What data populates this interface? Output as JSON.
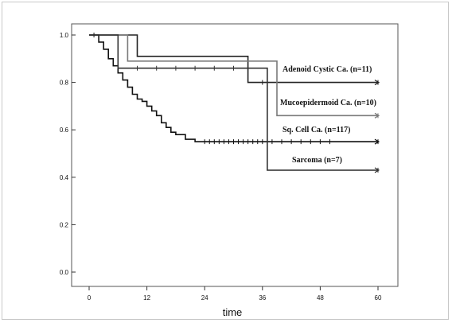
{
  "chart_data": {
    "type": "line",
    "title": "",
    "xlabel": "time",
    "ylabel": "",
    "xlim": [
      0,
      60
    ],
    "ylim": [
      0,
      1.0
    ],
    "x_ticks": [
      "0",
      "12",
      "24",
      "36",
      "48",
      "60"
    ],
    "x_tick_values": [
      0,
      12,
      24,
      36,
      48,
      60
    ],
    "y_ticks": [
      "0.0",
      "0.2",
      "0.4",
      "0.6",
      "0.8",
      "1.0"
    ],
    "y_tick_values": [
      0.0,
      0.2,
      0.4,
      0.6,
      0.8,
      1.0
    ],
    "grid": false,
    "legend": "annotations next to curves",
    "series": [
      {
        "name": "Adenoid Cystic Ca. (n=11)",
        "color": "#222222",
        "step": true,
        "x": [
          0,
          10,
          10,
          33,
          33,
          60
        ],
        "y": [
          1.0,
          1.0,
          0.91,
          0.91,
          0.8,
          0.8
        ],
        "censor_x": [
          36,
          60
        ]
      },
      {
        "name": "Mucoepidermoid Ca. (n=10)",
        "color": "#7a7a7a",
        "step": true,
        "x": [
          0,
          8,
          8,
          39,
          39,
          60
        ],
        "y": [
          1.0,
          1.0,
          0.89,
          0.89,
          0.66,
          0.66
        ],
        "censor_x": [
          60
        ]
      },
      {
        "name": "Sq. Cell Ca. (n=117)",
        "color": "#111111",
        "step": true,
        "x": [
          0,
          2,
          2,
          3,
          3,
          4,
          4,
          5,
          5,
          6,
          6,
          7,
          7,
          8,
          8,
          9,
          9,
          10,
          10,
          11,
          11,
          12,
          12,
          13,
          13,
          14,
          14,
          15,
          15,
          16,
          16,
          17,
          17,
          18,
          18,
          20,
          20,
          22,
          22,
          60
        ],
        "y": [
          1.0,
          1.0,
          0.97,
          0.97,
          0.94,
          0.94,
          0.9,
          0.9,
          0.87,
          0.87,
          0.84,
          0.84,
          0.81,
          0.81,
          0.78,
          0.78,
          0.75,
          0.75,
          0.73,
          0.73,
          0.72,
          0.72,
          0.7,
          0.7,
          0.68,
          0.68,
          0.66,
          0.66,
          0.63,
          0.63,
          0.61,
          0.61,
          0.59,
          0.59,
          0.58,
          0.58,
          0.56,
          0.56,
          0.55,
          0.55
        ],
        "censor_x": [
          1,
          24,
          25,
          26,
          27,
          28,
          29,
          30,
          31,
          32,
          33,
          34,
          35,
          36,
          37,
          38,
          40,
          42,
          44,
          46,
          48,
          50,
          60
        ]
      },
      {
        "name": "Sarcoma (n=7)",
        "color": "#333333",
        "step": true,
        "x": [
          0,
          6,
          6,
          37,
          37,
          60
        ],
        "y": [
          1.0,
          1.0,
          0.86,
          0.86,
          0.43,
          0.43
        ],
        "censor_x": [
          10,
          14,
          18,
          22,
          26,
          30,
          60
        ]
      }
    ]
  }
}
